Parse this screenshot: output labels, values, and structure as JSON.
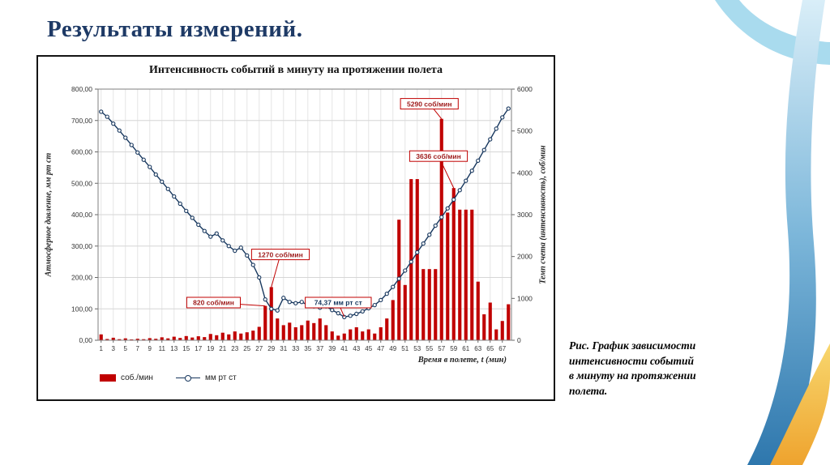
{
  "slide": {
    "title": "Результаты измерений.",
    "caption_lines": [
      "Рис. График зависимости",
      "интенсивности событий",
      "в минуту на протяжении",
      "полета."
    ]
  },
  "colors": {
    "bar_red": "#c00000",
    "line_blue": "#17375e",
    "title_navy": "#1e3a66",
    "annotation_red": "#9e1b1b",
    "annotation_blue": "#17375e",
    "swoosh_light_blue": "#a9dbee",
    "swoosh_deep_blue": "#2e77ad",
    "swoosh_yellow": "#f2b636"
  },
  "chart_data": {
    "type": "combo-bar-line",
    "title": "Интенсивность событий в минуту на протяжении полета",
    "xlabel": "Время в полете, t (мин)",
    "ylabel_left": "Атмосферное давление, мм рт ст",
    "ylabel_right": "Темп счета (интенсивность), соб/мин",
    "grid": true,
    "legend_position": "bottom-left",
    "x": [
      1,
      2,
      3,
      4,
      5,
      6,
      7,
      8,
      9,
      10,
      11,
      12,
      13,
      14,
      15,
      16,
      17,
      18,
      19,
      20,
      21,
      22,
      23,
      24,
      25,
      26,
      27,
      28,
      29,
      30,
      31,
      32,
      33,
      34,
      35,
      36,
      37,
      38,
      39,
      40,
      41,
      42,
      43,
      44,
      45,
      46,
      47,
      48,
      49,
      50,
      51,
      52,
      53,
      54,
      55,
      56,
      57,
      58,
      59,
      60,
      61,
      62,
      63,
      64,
      65,
      66,
      67,
      68
    ],
    "x_tick_labels": [
      "1",
      "3",
      "5",
      "7",
      "9",
      "11",
      "13",
      "15",
      "17",
      "19",
      "21",
      "23",
      "25",
      "27",
      "29",
      "31",
      "33",
      "35",
      "37",
      "39",
      "41",
      "43",
      "45",
      "47",
      "49",
      "51",
      "53",
      "55",
      "57",
      "59",
      "61",
      "63",
      "65",
      "67"
    ],
    "left_axis": {
      "min": 0,
      "max": 800,
      "step": 100,
      "labels": [
        "0,00",
        "100,00",
        "200,00",
        "300,00",
        "400,00",
        "500,00",
        "600,00",
        "700,00",
        "800,00"
      ]
    },
    "right_axis": {
      "min": 0,
      "max": 6000,
      "step": 1000,
      "labels": [
        "0",
        "1000",
        "2000",
        "3000",
        "4000",
        "5000",
        "6000"
      ]
    },
    "series": [
      {
        "name": "соб./мин",
        "type": "bar",
        "axis": "right",
        "color": "#c00000",
        "values": [
          140,
          30,
          60,
          25,
          45,
          20,
          35,
          25,
          50,
          35,
          70,
          45,
          85,
          55,
          100,
          65,
          95,
          75,
          150,
          120,
          180,
          140,
          210,
          160,
          190,
          230,
          320,
          820,
          1270,
          520,
          360,
          420,
          310,
          360,
          470,
          410,
          520,
          360,
          210,
          110,
          160,
          260,
          310,
          210,
          260,
          160,
          310,
          520,
          960,
          2880,
          1320,
          3850,
          3850,
          1700,
          1700,
          1700,
          5290,
          3050,
          3636,
          3120,
          3120,
          3120,
          1400,
          620,
          900,
          260,
          460,
          860
        ]
      },
      {
        "name": "мм рт ст",
        "type": "line",
        "axis": "left",
        "color": "#17375e",
        "values": [
          728,
          712,
          690,
          668,
          645,
          622,
          598,
          575,
          552,
          528,
          505,
          482,
          458,
          435,
          412,
          390,
          368,
          348,
          330,
          340,
          318,
          300,
          285,
          295,
          270,
          240,
          200,
          130,
          100,
          95,
          135,
          122,
          118,
          122,
          112,
          108,
          104,
          108,
          96,
          86,
          74,
          78,
          84,
          92,
          102,
          112,
          128,
          148,
          170,
          196,
          222,
          250,
          280,
          308,
          336,
          365,
          392,
          420,
          448,
          478,
          508,
          540,
          572,
          606,
          640,
          674,
          710,
          738
        ]
      }
    ],
    "annotations": [
      {
        "text": "820 соб/мин",
        "color": "#9e1b1b",
        "target_t": 28,
        "target_v": 820,
        "target_axis": "right",
        "box_t": 19.5,
        "box_v": 900
      },
      {
        "text": "1270 соб/мин",
        "color": "#9e1b1b",
        "target_t": 29,
        "target_v": 1270,
        "target_axis": "right",
        "box_t": 30.5,
        "box_v": 2050
      },
      {
        "text": "74,37 мм рт ст",
        "color": "#17375e",
        "target_t": 41,
        "target_v": 74.37,
        "target_axis": "left",
        "box_t": 40,
        "box_v": 900
      },
      {
        "text": "5290 соб/мин",
        "color": "#9e1b1b",
        "target_t": 57,
        "target_v": 5290,
        "target_axis": "right",
        "box_t": 55,
        "box_v": 5650
      },
      {
        "text": "3636 соб/мин",
        "color": "#9e1b1b",
        "target_t": 59,
        "target_v": 3636,
        "target_axis": "right",
        "box_t": 56.5,
        "box_v": 4400
      }
    ],
    "legend": [
      "соб./мин",
      "мм рт ст"
    ]
  }
}
